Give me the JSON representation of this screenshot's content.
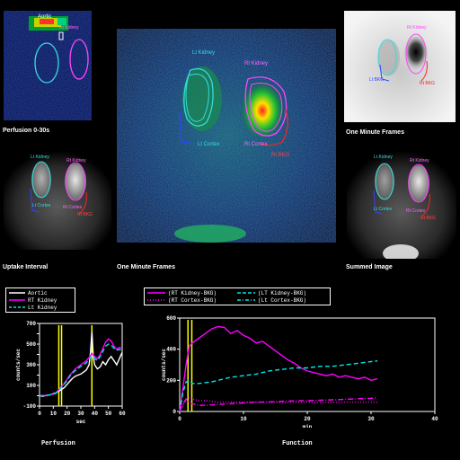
{
  "panels": {
    "perfusion_image": {
      "caption": "Perfusion 0-30s",
      "top_label": "Aortic",
      "roi_labels": {
        "right_kidney": "Rt Kidney"
      }
    },
    "one_min_small": {
      "caption": "One Minute Frames",
      "roi_labels": {
        "lt_cortex": "Lt Cortex",
        "rt_cortex": "Rt Cortex",
        "rt_kidney": "Rt Kidney",
        "lt_bkg": "Lt BKG",
        "rt_bkg": "Rt BKG"
      }
    },
    "main_image": {
      "caption": "One Minute Frames",
      "roi_labels": {
        "lt_kidney": "Lt Kidney",
        "rt_kidney": "Rt Kidney",
        "lt_cortex": "Lt Cortex",
        "rt_cortex": "Rt Cortex",
        "rt_bkg": "Rt BKG"
      }
    },
    "uptake": {
      "caption": "Uptake Interval",
      "roi_labels": {
        "lt_kidney": "Lt Kidney",
        "rt_kidney": "Rt Kidney",
        "lt_cortex": "Lt Cortex",
        "rt_cortex": "Rt Cortex",
        "rt_bkg": "Rt BKG"
      }
    },
    "summed": {
      "caption": "Summed Image",
      "roi_labels": {
        "lt_kidney": "Lt Kidney",
        "rt_kidney": "Rt Kidney",
        "lt_cortex": "Lt Cortex",
        "rt_cortex": "Rt Cortex",
        "rt_bkg": "Rt BKG"
      }
    }
  },
  "colors": {
    "aortic": "#ffffff",
    "rt_kidney": "#ff00ff",
    "lt_kidney": "#00e5e5",
    "marker": "#ffff00",
    "roi_lt": "#33dddd",
    "roi_rt": "#ff44ff",
    "roi_bkg": "#ff2020",
    "roi_lt_bkg": "#3344ff"
  },
  "chart_data": [
    {
      "type": "line",
      "title": "Perfusion",
      "xlabel": "sec",
      "ylabel": "counts/sec",
      "xlim": [
        0,
        60
      ],
      "ylim": [
        -100,
        700
      ],
      "xticks": [
        0,
        10,
        20,
        30,
        40,
        50,
        60
      ],
      "yticks": [
        -100,
        0,
        100,
        200,
        300,
        400,
        500,
        600,
        700
      ],
      "ytick_labels": [
        "-100",
        "",
        "100",
        "",
        "300",
        "",
        "500",
        "",
        "700"
      ],
      "markers": [
        14,
        16,
        38
      ],
      "series": [
        {
          "name": "Aortic",
          "style": "solid",
          "x": [
            0,
            2,
            4,
            6,
            8,
            10,
            12,
            14,
            16,
            18,
            20,
            22,
            24,
            26,
            28,
            30,
            32,
            34,
            36,
            37,
            38,
            39,
            40,
            42,
            44,
            46,
            48,
            50,
            52,
            54,
            56,
            58,
            60
          ],
          "y": [
            0,
            -5,
            0,
            5,
            10,
            20,
            30,
            45,
            60,
            80,
            110,
            140,
            170,
            190,
            200,
            210,
            230,
            250,
            300,
            420,
            620,
            380,
            300,
            260,
            280,
            330,
            300,
            350,
            380,
            340,
            300,
            360,
            420
          ]
        },
        {
          "name": "RT Kidney",
          "style": "solid",
          "x": [
            0,
            2,
            4,
            6,
            8,
            10,
            12,
            14,
            16,
            18,
            20,
            22,
            24,
            26,
            28,
            30,
            32,
            34,
            36,
            38,
            40,
            42,
            44,
            46,
            48,
            50,
            52,
            54,
            56,
            58,
            60
          ],
          "y": [
            0,
            0,
            5,
            5,
            10,
            15,
            30,
            60,
            90,
            120,
            160,
            200,
            230,
            260,
            280,
            300,
            320,
            340,
            370,
            410,
            380,
            360,
            400,
            460,
            520,
            550,
            530,
            480,
            450,
            470,
            460
          ]
        },
        {
          "name": "Lt Kidney",
          "style": "dashed",
          "x": [
            0,
            2,
            4,
            6,
            8,
            10,
            12,
            14,
            16,
            18,
            20,
            22,
            24,
            26,
            28,
            30,
            32,
            34,
            36,
            38,
            40,
            42,
            44,
            46,
            48,
            50,
            52,
            54,
            56,
            58,
            60
          ],
          "y": [
            0,
            0,
            5,
            5,
            10,
            15,
            25,
            55,
            85,
            115,
            150,
            190,
            220,
            245,
            265,
            285,
            300,
            320,
            350,
            390,
            360,
            340,
            380,
            430,
            480,
            500,
            490,
            460,
            440,
            450,
            440
          ]
        }
      ],
      "legend": [
        "Aortic",
        "RT Kidney",
        "Lt Kidney"
      ]
    },
    {
      "type": "line",
      "title": "Function",
      "xlabel": "min",
      "ylabel": "counts/sec",
      "xlim": [
        0,
        40
      ],
      "ylim": [
        0,
        600
      ],
      "xticks": [
        0,
        10,
        20,
        30,
        40
      ],
      "yticks": [
        0,
        200,
        400,
        600
      ],
      "markers": [
        1.3,
        1.9
      ],
      "series": [
        {
          "name": "(RT Kidney-BKG)",
          "style": "solid",
          "x": [
            0,
            0.5,
            1,
            1.5,
            2,
            3,
            4,
            5,
            6,
            7,
            8,
            9,
            10,
            11,
            12,
            13,
            14,
            15,
            16,
            17,
            18,
            19,
            20,
            21,
            22,
            23,
            24,
            25,
            26,
            27,
            28,
            29,
            30,
            31
          ],
          "y": [
            0,
            150,
            300,
            420,
            440,
            470,
            500,
            530,
            545,
            540,
            500,
            520,
            490,
            470,
            440,
            450,
            420,
            390,
            360,
            330,
            310,
            280,
            260,
            250,
            240,
            230,
            240,
            220,
            230,
            220,
            210,
            220,
            200,
            210
          ]
        },
        {
          "name": "(RT Cortex-BKG)",
          "style": "dotted",
          "x": [
            0,
            0.5,
            1,
            1.5,
            2,
            3,
            4,
            5,
            6,
            8,
            10,
            12,
            14,
            16,
            18,
            20,
            22,
            24,
            26,
            28,
            30,
            31
          ],
          "y": [
            0,
            40,
            70,
            90,
            80,
            70,
            70,
            65,
            60,
            60,
            60,
            60,
            60,
            58,
            58,
            60,
            58,
            58,
            60,
            60,
            60,
            58
          ]
        },
        {
          "name": "(LT Kidney-BKG)",
          "style": "dashed",
          "x": [
            0,
            0.5,
            1,
            1.5,
            2,
            3,
            4,
            5,
            6,
            8,
            10,
            12,
            14,
            16,
            18,
            20,
            22,
            24,
            26,
            28,
            30,
            31
          ],
          "y": [
            0,
            120,
            190,
            200,
            180,
            180,
            185,
            190,
            200,
            220,
            230,
            240,
            260,
            270,
            280,
            280,
            290,
            290,
            300,
            310,
            320,
            325
          ]
        },
        {
          "name": "(Lt Cortex-BKG)",
          "style": "dashdot",
          "x": [
            0,
            0.5,
            1,
            1.5,
            2,
            3,
            4,
            5,
            6,
            8,
            10,
            12,
            14,
            16,
            18,
            20,
            22,
            24,
            26,
            28,
            30,
            31
          ],
          "y": [
            0,
            50,
            80,
            60,
            50,
            40,
            40,
            42,
            45,
            50,
            55,
            60,
            62,
            65,
            68,
            70,
            72,
            75,
            78,
            82,
            85,
            88
          ]
        }
      ],
      "legend": [
        "(RT Kidney-BKG)",
        "(LT Kidney-BKG)",
        "(RT Cortex-BKG)",
        "(Lt Cortex-BKG)"
      ]
    }
  ]
}
